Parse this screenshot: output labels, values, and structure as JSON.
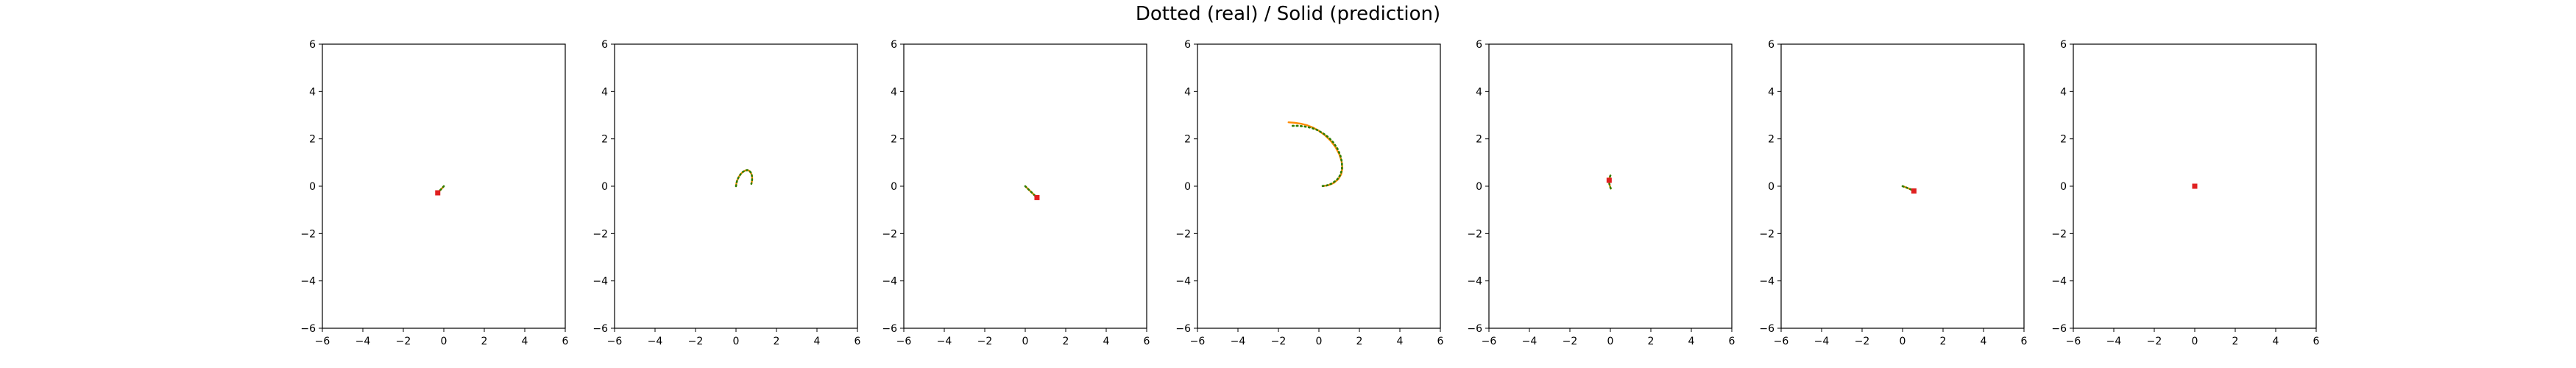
{
  "figure": {
    "title": "Dotted (real) / Solid (prediction)"
  },
  "colors": {
    "real": "#2e7d00",
    "prediction": "#ff8c00",
    "marker": "#e02020",
    "axis": "#000000",
    "background": "#ffffff"
  },
  "chart_data": [
    {
      "type": "line",
      "xlim": [
        -6,
        6
      ],
      "ylim": [
        -6,
        6
      ],
      "xticks": [
        -6,
        -4,
        -2,
        0,
        2,
        4,
        6
      ],
      "yticks": [
        -6,
        -4,
        -2,
        0,
        2,
        4,
        6
      ],
      "grid": false,
      "series": [
        {
          "style": "dotted",
          "x": [
            0.0,
            -0.08,
            -0.16,
            -0.24,
            -0.3
          ],
          "y": [
            0.0,
            -0.08,
            -0.15,
            -0.22,
            -0.28
          ]
        },
        {
          "style": "solid",
          "x": [
            0.0,
            -0.08,
            -0.16,
            -0.24,
            -0.3
          ],
          "y": [
            0.0,
            -0.08,
            -0.15,
            -0.22,
            -0.28
          ]
        }
      ],
      "marker": [
        -0.3,
        -0.28
      ]
    },
    {
      "type": "line",
      "xlim": [
        -6,
        6
      ],
      "ylim": [
        -6,
        6
      ],
      "xticks": [
        -6,
        -4,
        -2,
        0,
        2,
        4,
        6
      ],
      "yticks": [
        -6,
        -4,
        -2,
        0,
        2,
        4,
        6
      ],
      "grid": false,
      "series": [
        {
          "style": "dotted",
          "x": [
            0.0,
            0.02,
            0.06,
            0.13,
            0.22,
            0.33,
            0.45,
            0.56,
            0.66,
            0.73,
            0.78,
            0.8,
            0.79,
            0.76
          ],
          "y": [
            0.0,
            0.12,
            0.25,
            0.38,
            0.5,
            0.6,
            0.66,
            0.68,
            0.65,
            0.58,
            0.47,
            0.35,
            0.22,
            0.1
          ]
        },
        {
          "style": "solid",
          "x": [
            0.0,
            0.02,
            0.06,
            0.13,
            0.22,
            0.33,
            0.45,
            0.56,
            0.66,
            0.73,
            0.78,
            0.8,
            0.79,
            0.76
          ],
          "y": [
            0.0,
            0.12,
            0.25,
            0.38,
            0.5,
            0.6,
            0.66,
            0.68,
            0.65,
            0.58,
            0.47,
            0.35,
            0.22,
            0.1
          ]
        }
      ],
      "marker": null
    },
    {
      "type": "line",
      "xlim": [
        -6,
        6
      ],
      "ylim": [
        -6,
        6
      ],
      "xticks": [
        -6,
        -4,
        -2,
        0,
        2,
        4,
        6
      ],
      "yticks": [
        -6,
        -4,
        -2,
        0,
        2,
        4,
        6
      ],
      "grid": false,
      "series": [
        {
          "style": "dotted",
          "x": [
            0.0,
            0.12,
            0.24,
            0.36,
            0.48,
            0.58
          ],
          "y": [
            0.0,
            -0.1,
            -0.2,
            -0.3,
            -0.4,
            -0.48
          ]
        },
        {
          "style": "solid",
          "x": [
            0.0,
            0.12,
            0.24,
            0.36,
            0.48,
            0.58
          ],
          "y": [
            0.0,
            -0.1,
            -0.2,
            -0.3,
            -0.4,
            -0.48
          ]
        }
      ],
      "marker": [
        0.58,
        -0.48
      ]
    },
    {
      "type": "line",
      "xlim": [
        -6,
        6
      ],
      "ylim": [
        -6,
        6
      ],
      "xticks": [
        -6,
        -4,
        -2,
        0,
        2,
        4,
        6
      ],
      "yticks": [
        -6,
        -4,
        -2,
        0,
        2,
        4,
        6
      ],
      "grid": false,
      "series": [
        {
          "style": "dotted",
          "x": [
            -1.3,
            -1.0,
            -0.7,
            -0.4,
            -0.1,
            0.2,
            0.48,
            0.72,
            0.92,
            1.06,
            1.14,
            1.14,
            1.06,
            0.9,
            0.66,
            0.38,
            0.1
          ],
          "y": [
            2.55,
            2.55,
            2.52,
            2.47,
            2.38,
            2.24,
            2.06,
            1.84,
            1.58,
            1.3,
            1.0,
            0.72,
            0.48,
            0.28,
            0.12,
            0.03,
            0.0
          ]
        },
        {
          "style": "solid",
          "x": [
            -1.5,
            -1.2,
            -0.9,
            -0.6,
            -0.3,
            0.0,
            0.3,
            0.58,
            0.82,
            1.0,
            1.12,
            1.16,
            1.1,
            0.96,
            0.74,
            0.46,
            0.18
          ],
          "y": [
            2.7,
            2.68,
            2.64,
            2.58,
            2.48,
            2.34,
            2.15,
            1.92,
            1.65,
            1.36,
            1.06,
            0.76,
            0.5,
            0.3,
            0.14,
            0.04,
            0.0
          ]
        }
      ],
      "marker": null
    },
    {
      "type": "line",
      "xlim": [
        -6,
        6
      ],
      "ylim": [
        -6,
        6
      ],
      "xticks": [
        -6,
        -4,
        -2,
        0,
        2,
        4,
        6
      ],
      "yticks": [
        -6,
        -4,
        -2,
        0,
        2,
        4,
        6
      ],
      "grid": false,
      "series": [
        {
          "style": "dotted",
          "x": [
            0.0,
            -0.04,
            -0.06,
            -0.05,
            -0.02,
            0.02
          ],
          "y": [
            0.45,
            0.35,
            0.22,
            0.1,
            0.0,
            -0.1
          ]
        },
        {
          "style": "solid",
          "x": [
            0.0,
            -0.04,
            -0.06,
            -0.05,
            -0.02,
            0.02
          ],
          "y": [
            0.45,
            0.35,
            0.22,
            0.1,
            0.0,
            -0.1
          ]
        }
      ],
      "marker": [
        -0.06,
        0.25
      ]
    },
    {
      "type": "line",
      "xlim": [
        -6,
        6
      ],
      "ylim": [
        -6,
        6
      ],
      "xticks": [
        -6,
        -4,
        -2,
        0,
        2,
        4,
        6
      ],
      "yticks": [
        -6,
        -4,
        -2,
        0,
        2,
        4,
        6
      ],
      "grid": false,
      "series": [
        {
          "style": "dotted",
          "x": [
            0.0,
            0.14,
            0.28,
            0.42,
            0.56
          ],
          "y": [
            0.0,
            -0.04,
            -0.09,
            -0.14,
            -0.2
          ]
        },
        {
          "style": "solid",
          "x": [
            0.0,
            0.14,
            0.28,
            0.42,
            0.56
          ],
          "y": [
            0.0,
            -0.04,
            -0.09,
            -0.14,
            -0.2
          ]
        }
      ],
      "marker": [
        0.56,
        -0.2
      ]
    },
    {
      "type": "line",
      "xlim": [
        -6,
        6
      ],
      "ylim": [
        -6,
        6
      ],
      "xticks": [
        -6,
        -4,
        -2,
        0,
        2,
        4,
        6
      ],
      "yticks": [
        -6,
        -4,
        -2,
        0,
        2,
        4,
        6
      ],
      "grid": false,
      "series": [
        {
          "style": "dotted",
          "x": [
            0.0,
            0.02
          ],
          "y": [
            0.0,
            0.02
          ]
        },
        {
          "style": "solid",
          "x": [
            0.0,
            0.02
          ],
          "y": [
            0.0,
            0.02
          ]
        }
      ],
      "marker": [
        0.0,
        0.0
      ]
    }
  ]
}
